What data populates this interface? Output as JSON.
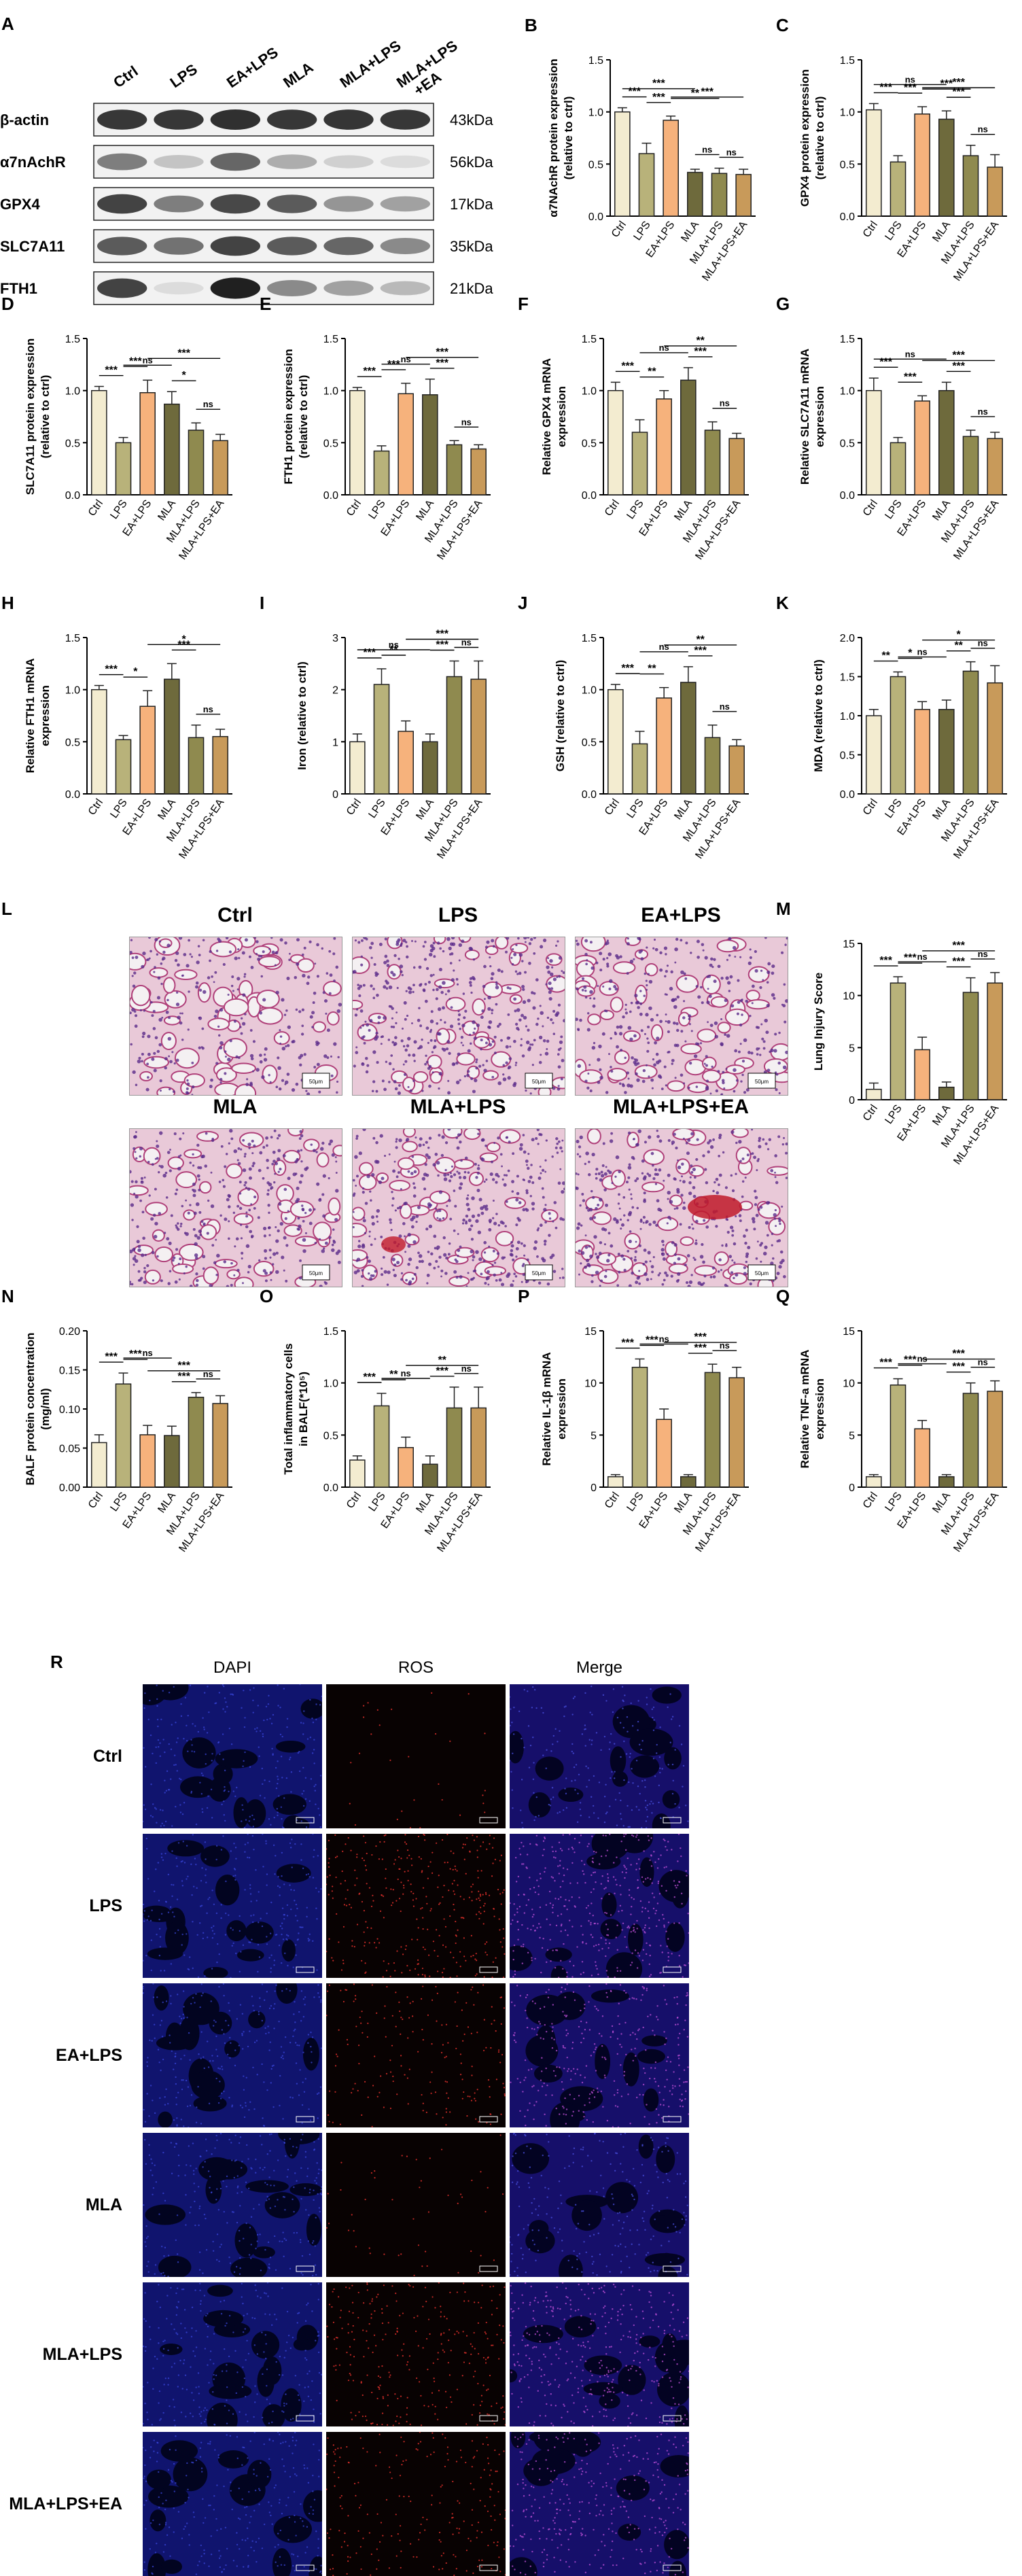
{
  "groups": [
    "Ctrl",
    "LPS",
    "EA+LPS",
    "MLA",
    "MLA+LPS",
    "MLA+LPS+EA"
  ],
  "colors": [
    "#f3ecd0",
    "#b8b27a",
    "#f6b27c",
    "#6e6a3c",
    "#8f8a4f",
    "#c89a5a"
  ],
  "panel_letters": {
    "A": "A",
    "B": "B",
    "C": "C",
    "D": "D",
    "E": "E",
    "F": "F",
    "G": "G",
    "H": "H",
    "I": "I",
    "J": "J",
    "K": "K",
    "L": "L",
    "M": "M",
    "N": "N",
    "O": "O",
    "P": "P",
    "Q": "Q",
    "R": "R"
  },
  "blot": {
    "lanes": [
      "Ctrl",
      "LPS",
      "EA+LPS",
      "MLA",
      "MLA+LPS",
      "MLA+LPS\n+EA"
    ],
    "rows": [
      {
        "name": "β-actin",
        "kda": "43kDa",
        "intensity": [
          0.85,
          0.85,
          0.88,
          0.85,
          0.86,
          0.85
        ]
      },
      {
        "name": "α7nAchR",
        "kda": "56kDa",
        "intensity": [
          0.55,
          0.25,
          0.65,
          0.35,
          0.2,
          0.15
        ]
      },
      {
        "name": "GPX4",
        "kda": "17kDa",
        "intensity": [
          0.8,
          0.55,
          0.78,
          0.7,
          0.45,
          0.4
        ]
      },
      {
        "name": "SLC7A11",
        "kda": "35kDa",
        "intensity": [
          0.7,
          0.6,
          0.8,
          0.7,
          0.65,
          0.5
        ]
      },
      {
        "name": "FTH1",
        "kda": "21kDa",
        "intensity": [
          0.8,
          0.15,
          0.95,
          0.5,
          0.4,
          0.3
        ]
      }
    ]
  },
  "chart_data": [
    {
      "id": "B",
      "type": "bar",
      "categories": [
        "Ctrl",
        "LPS",
        "EA+LPS",
        "MLA",
        "MLA+LPS",
        "MLA+LPS+EA"
      ],
      "values": [
        1.0,
        0.6,
        0.92,
        0.42,
        0.41,
        0.4
      ],
      "errors": [
        0.04,
        0.1,
        0.04,
        0.03,
        0.05,
        0.05
      ],
      "ylabel": "α7NAchR protein expression\n(relative to ctrl)",
      "ylim": [
        0,
        1.5
      ],
      "yticks": [
        "0.0",
        "0.5",
        "1.0",
        "1.5"
      ],
      "sig": [
        [
          "***",
          0,
          1
        ],
        [
          "***",
          1,
          2
        ],
        [
          "***",
          0,
          3
        ],
        [
          "**",
          2,
          4
        ],
        [
          "***",
          2,
          5
        ],
        [
          "ns",
          3,
          4
        ],
        [
          "ns",
          4,
          5
        ]
      ]
    },
    {
      "id": "C",
      "type": "bar",
      "categories": [
        "Ctrl",
        "LPS",
        "EA+LPS",
        "MLA",
        "MLA+LPS",
        "MLA+LPS+EA"
      ],
      "values": [
        1.02,
        0.52,
        0.98,
        0.93,
        0.58,
        0.47
      ],
      "errors": [
        0.06,
        0.06,
        0.07,
        0.08,
        0.1,
        0.12
      ],
      "ylabel": "GPX4 protein expression\n(relative to ctrl)",
      "ylim": [
        0,
        1.5
      ],
      "yticks": [
        "0.0",
        "0.5",
        "1.0",
        "1.5"
      ],
      "sig": [
        [
          "***",
          0,
          1
        ],
        [
          "***",
          1,
          2
        ],
        [
          "ns",
          0,
          3
        ],
        [
          "***",
          2,
          4
        ],
        [
          "***",
          2,
          5
        ],
        [
          "***",
          3,
          4
        ],
        [
          "ns",
          4,
          5
        ]
      ]
    },
    {
      "id": "D",
      "type": "bar",
      "categories": [
        "Ctrl",
        "LPS",
        "EA+LPS",
        "MLA",
        "MLA+LPS",
        "MLA+LPS+EA"
      ],
      "values": [
        1.0,
        0.5,
        0.98,
        0.87,
        0.62,
        0.52
      ],
      "errors": [
        0.04,
        0.05,
        0.12,
        0.12,
        0.07,
        0.06
      ],
      "ylabel": "SLC7A11 protein expression\n(relative to ctrl)",
      "ylim": [
        0,
        1.5
      ],
      "yticks": [
        "0.0",
        "0.5",
        "1.0",
        "1.5"
      ],
      "sig": [
        [
          "***",
          0,
          1
        ],
        [
          "***",
          1,
          2
        ],
        [
          "ns",
          1,
          3
        ],
        [
          "***",
          2,
          5
        ],
        [
          "*",
          3,
          4
        ],
        [
          "ns",
          4,
          5
        ]
      ]
    },
    {
      "id": "E",
      "type": "bar",
      "categories": [
        "Ctrl",
        "LPS",
        "EA+LPS",
        "MLA",
        "MLA+LPS",
        "MLA+LPS+EA"
      ],
      "values": [
        1.0,
        0.42,
        0.97,
        0.96,
        0.48,
        0.44
      ],
      "errors": [
        0.03,
        0.05,
        0.1,
        0.15,
        0.04,
        0.04
      ],
      "ylabel": "FTH1 protein expression\n(relative to ctrl)",
      "ylim": [
        0,
        1.5
      ],
      "yticks": [
        "0.0",
        "0.5",
        "1.0",
        "1.5"
      ],
      "sig": [
        [
          "***",
          0,
          1
        ],
        [
          "***",
          1,
          2
        ],
        [
          "ns",
          1,
          3
        ],
        [
          "***",
          2,
          5
        ],
        [
          "***",
          3,
          4
        ],
        [
          "ns",
          4,
          5
        ]
      ]
    },
    {
      "id": "F",
      "type": "bar",
      "categories": [
        "Ctrl",
        "LPS",
        "EA+LPS",
        "MLA",
        "MLA+LPS",
        "MLA+LPS+EA"
      ],
      "values": [
        1.0,
        0.6,
        0.92,
        1.1,
        0.62,
        0.54
      ],
      "errors": [
        0.08,
        0.12,
        0.08,
        0.12,
        0.08,
        0.05
      ],
      "ylabel": "Relative GPX4 mRNA\nexpression",
      "ylim": [
        0,
        1.5
      ],
      "yticks": [
        "0.0",
        "0.5",
        "1.0",
        "1.5"
      ],
      "sig": [
        [
          "***",
          0,
          1
        ],
        [
          "**",
          1,
          2
        ],
        [
          "ns",
          1,
          3
        ],
        [
          "**",
          2,
          5
        ],
        [
          "***",
          3,
          4
        ],
        [
          "ns",
          4,
          5
        ]
      ]
    },
    {
      "id": "G",
      "type": "bar",
      "categories": [
        "Ctrl",
        "LPS",
        "EA+LPS",
        "MLA",
        "MLA+LPS",
        "MLA+LPS+EA"
      ],
      "values": [
        1.0,
        0.5,
        0.9,
        1.0,
        0.56,
        0.54
      ],
      "errors": [
        0.12,
        0.05,
        0.05,
        0.08,
        0.06,
        0.06
      ],
      "ylabel": "Relative SLC7A11 mRNA\nexpression",
      "ylim": [
        0,
        1.5
      ],
      "yticks": [
        "0.0",
        "0.5",
        "1.0",
        "1.5"
      ],
      "sig": [
        [
          "***",
          0,
          1
        ],
        [
          "***",
          1,
          2
        ],
        [
          "ns",
          0,
          3
        ],
        [
          "***",
          2,
          5
        ],
        [
          "***",
          3,
          4
        ],
        [
          "ns",
          4,
          5
        ]
      ]
    },
    {
      "id": "H",
      "type": "bar",
      "categories": [
        "Ctrl",
        "LPS",
        "EA+LPS",
        "MLA",
        "MLA+LPS",
        "MLA+LPS+EA"
      ],
      "values": [
        1.0,
        0.52,
        0.84,
        1.1,
        0.54,
        0.55
      ],
      "errors": [
        0.04,
        0.04,
        0.15,
        0.15,
        0.12,
        0.07
      ],
      "ylabel": "Relative FTH1 mRNA\nexpression",
      "ylim": [
        0,
        1.5
      ],
      "yticks": [
        "0.0",
        "0.5",
        "1.0",
        "1.5"
      ],
      "sig": [
        [
          "***",
          0,
          1
        ],
        [
          "*",
          1,
          2
        ],
        [
          "*",
          2,
          5
        ],
        [
          "***",
          3,
          4
        ],
        [
          "ns",
          4,
          5
        ]
      ]
    },
    {
      "id": "I",
      "type": "bar",
      "categories": [
        "Ctrl",
        "LPS",
        "EA+LPS",
        "MLA",
        "MLA+LPS",
        "MLA+LPS+EA"
      ],
      "values": [
        1.0,
        2.1,
        1.2,
        1.0,
        2.25,
        2.2
      ],
      "errors": [
        0.15,
        0.3,
        0.2,
        0.15,
        0.3,
        0.35
      ],
      "ylabel": "Iron (relative to ctrl)",
      "ylim": [
        0,
        3
      ],
      "yticks": [
        "0",
        "1",
        "2",
        "3"
      ],
      "sig": [
        [
          "***",
          0,
          1
        ],
        [
          "**",
          1,
          2
        ],
        [
          "ns",
          0,
          3
        ],
        [
          "***",
          2,
          5
        ],
        [
          "***",
          3,
          4
        ],
        [
          "ns",
          4,
          5
        ]
      ]
    },
    {
      "id": "J",
      "type": "bar",
      "categories": [
        "Ctrl",
        "LPS",
        "EA+LPS",
        "MLA",
        "MLA+LPS",
        "MLA+LPS+EA"
      ],
      "values": [
        1.0,
        0.48,
        0.92,
        1.07,
        0.54,
        0.46
      ],
      "errors": [
        0.05,
        0.12,
        0.1,
        0.15,
        0.12,
        0.06
      ],
      "ylabel": "GSH (relative to ctrl)",
      "ylim": [
        0,
        1.5
      ],
      "yticks": [
        "0.0",
        "0.5",
        "1.0",
        "1.5"
      ],
      "sig": [
        [
          "***",
          0,
          1
        ],
        [
          "**",
          1,
          2
        ],
        [
          "ns",
          1,
          3
        ],
        [
          "**",
          2,
          5
        ],
        [
          "***",
          3,
          4
        ],
        [
          "ns",
          4,
          5
        ]
      ]
    },
    {
      "id": "K",
      "type": "bar",
      "categories": [
        "Ctrl",
        "LPS",
        "EA+LPS",
        "MLA",
        "MLA+LPS",
        "MLA+LPS+EA"
      ],
      "values": [
        1.0,
        1.5,
        1.08,
        1.08,
        1.57,
        1.42
      ],
      "errors": [
        0.08,
        0.06,
        0.1,
        0.12,
        0.12,
        0.22
      ],
      "ylabel": "MDA (relative to ctrl)",
      "ylim": [
        0,
        2
      ],
      "yticks": [
        "0.0",
        "0.5",
        "1.0",
        "1.5",
        "2.0"
      ],
      "sig": [
        [
          "**",
          0,
          1
        ],
        [
          "*",
          1,
          2
        ],
        [
          "ns",
          1,
          3
        ],
        [
          "*",
          2,
          5
        ],
        [
          "**",
          3,
          4
        ],
        [
          "ns",
          4,
          5
        ]
      ]
    },
    {
      "id": "M",
      "type": "bar",
      "categories": [
        "Ctrl",
        "LPS",
        "EA+LPS",
        "MLA",
        "MLA+LPS",
        "MLA+LPS+EA"
      ],
      "values": [
        1.0,
        11.2,
        4.8,
        1.2,
        10.3,
        11.2
      ],
      "errors": [
        0.6,
        0.6,
        1.2,
        0.5,
        1.4,
        1.0
      ],
      "ylabel": "Lung Injury Score",
      "ylim": [
        0,
        15
      ],
      "yticks": [
        "0",
        "5",
        "10",
        "15"
      ],
      "sig": [
        [
          "***",
          0,
          1
        ],
        [
          "***",
          1,
          2
        ],
        [
          "ns",
          1,
          3
        ],
        [
          "***",
          2,
          5
        ],
        [
          "***",
          3,
          4
        ],
        [
          "ns",
          4,
          5
        ]
      ]
    },
    {
      "id": "N",
      "type": "bar",
      "categories": [
        "Ctrl",
        "LPS",
        "EA+LPS",
        "MLA",
        "MLA+LPS",
        "MLA+LPS+EA"
      ],
      "values": [
        0.057,
        0.132,
        0.067,
        0.066,
        0.115,
        0.107
      ],
      "errors": [
        0.01,
        0.014,
        0.012,
        0.012,
        0.006,
        0.01
      ],
      "ylabel": "BALF protein concentration\n(mg/ml)",
      "ylim": [
        0,
        0.2
      ],
      "yticks": [
        "0.00",
        "0.05",
        "0.10",
        "0.15",
        "0.20"
      ],
      "sig": [
        [
          "***",
          0,
          1
        ],
        [
          "***",
          1,
          2
        ],
        [
          "ns",
          1,
          3
        ],
        [
          "***",
          2,
          5
        ],
        [
          "***",
          3,
          4
        ],
        [
          "ns",
          4,
          5
        ]
      ]
    },
    {
      "id": "O",
      "type": "bar",
      "categories": [
        "Ctrl",
        "LPS",
        "EA+LPS",
        "MLA",
        "MLA+LPS",
        "MLA+LPS+EA"
      ],
      "values": [
        0.26,
        0.78,
        0.38,
        0.22,
        0.76,
        0.76
      ],
      "errors": [
        0.04,
        0.12,
        0.1,
        0.08,
        0.2,
        0.2
      ],
      "ylabel": "Total inflammatory cells\nin BALF(*10⁵)",
      "ylim": [
        0,
        1.5
      ],
      "yticks": [
        "0.0",
        "0.5",
        "1.0",
        "1.5"
      ],
      "sig": [
        [
          "***",
          0,
          1
        ],
        [
          "**",
          1,
          2
        ],
        [
          "ns",
          1,
          3
        ],
        [
          "**",
          2,
          5
        ],
        [
          "***",
          3,
          4
        ],
        [
          "ns",
          4,
          5
        ]
      ]
    },
    {
      "id": "P",
      "type": "bar",
      "categories": [
        "Ctrl",
        "LPS",
        "EA+LPS",
        "MLA",
        "MLA+LPS",
        "MLA+LPS+EA"
      ],
      "values": [
        1.0,
        11.5,
        6.5,
        1.0,
        11.0,
        10.5
      ],
      "errors": [
        0.2,
        0.8,
        1.0,
        0.2,
        0.8,
        1.0
      ],
      "ylabel": "Relative IL-1β mRNA\nexpression",
      "ylim": [
        0,
        15
      ],
      "yticks": [
        "0",
        "5",
        "10",
        "15"
      ],
      "sig": [
        [
          "***",
          0,
          1
        ],
        [
          "***",
          1,
          2
        ],
        [
          "ns",
          1,
          3
        ],
        [
          "***",
          2,
          5
        ],
        [
          "***",
          3,
          4
        ],
        [
          "ns",
          4,
          5
        ]
      ]
    },
    {
      "id": "Q",
      "type": "bar",
      "categories": [
        "Ctrl",
        "LPS",
        "EA+LPS",
        "MLA",
        "MLA+LPS",
        "MLA+LPS+EA"
      ],
      "values": [
        1.0,
        9.8,
        5.6,
        1.0,
        9.0,
        9.2
      ],
      "errors": [
        0.2,
        0.6,
        0.8,
        0.2,
        1.0,
        1.0
      ],
      "ylabel": "Relative TNF-a mRNA\nexpression",
      "ylim": [
        0,
        15
      ],
      "yticks": [
        "0",
        "5",
        "10",
        "15"
      ],
      "sig": [
        [
          "***",
          0,
          1
        ],
        [
          "***",
          1,
          2
        ],
        [
          "ns",
          1,
          3
        ],
        [
          "***",
          2,
          5
        ],
        [
          "***",
          3,
          4
        ],
        [
          "ns",
          4,
          5
        ]
      ]
    }
  ],
  "histology": {
    "titles": [
      "Ctrl",
      "LPS",
      "EA+LPS",
      "MLA",
      "MLA+LPS",
      "MLA+LPS+EA"
    ],
    "scale_label": "50μm"
  },
  "fluorescence": {
    "columns": [
      "DAPI",
      "ROS",
      "Merge"
    ],
    "rows": [
      "Ctrl",
      "LPS",
      "EA+LPS",
      "MLA",
      "MLA+LPS",
      "MLA+LPS+EA"
    ],
    "ros_level": [
      0.05,
      0.55,
      0.3,
      0.08,
      0.45,
      0.35
    ]
  }
}
